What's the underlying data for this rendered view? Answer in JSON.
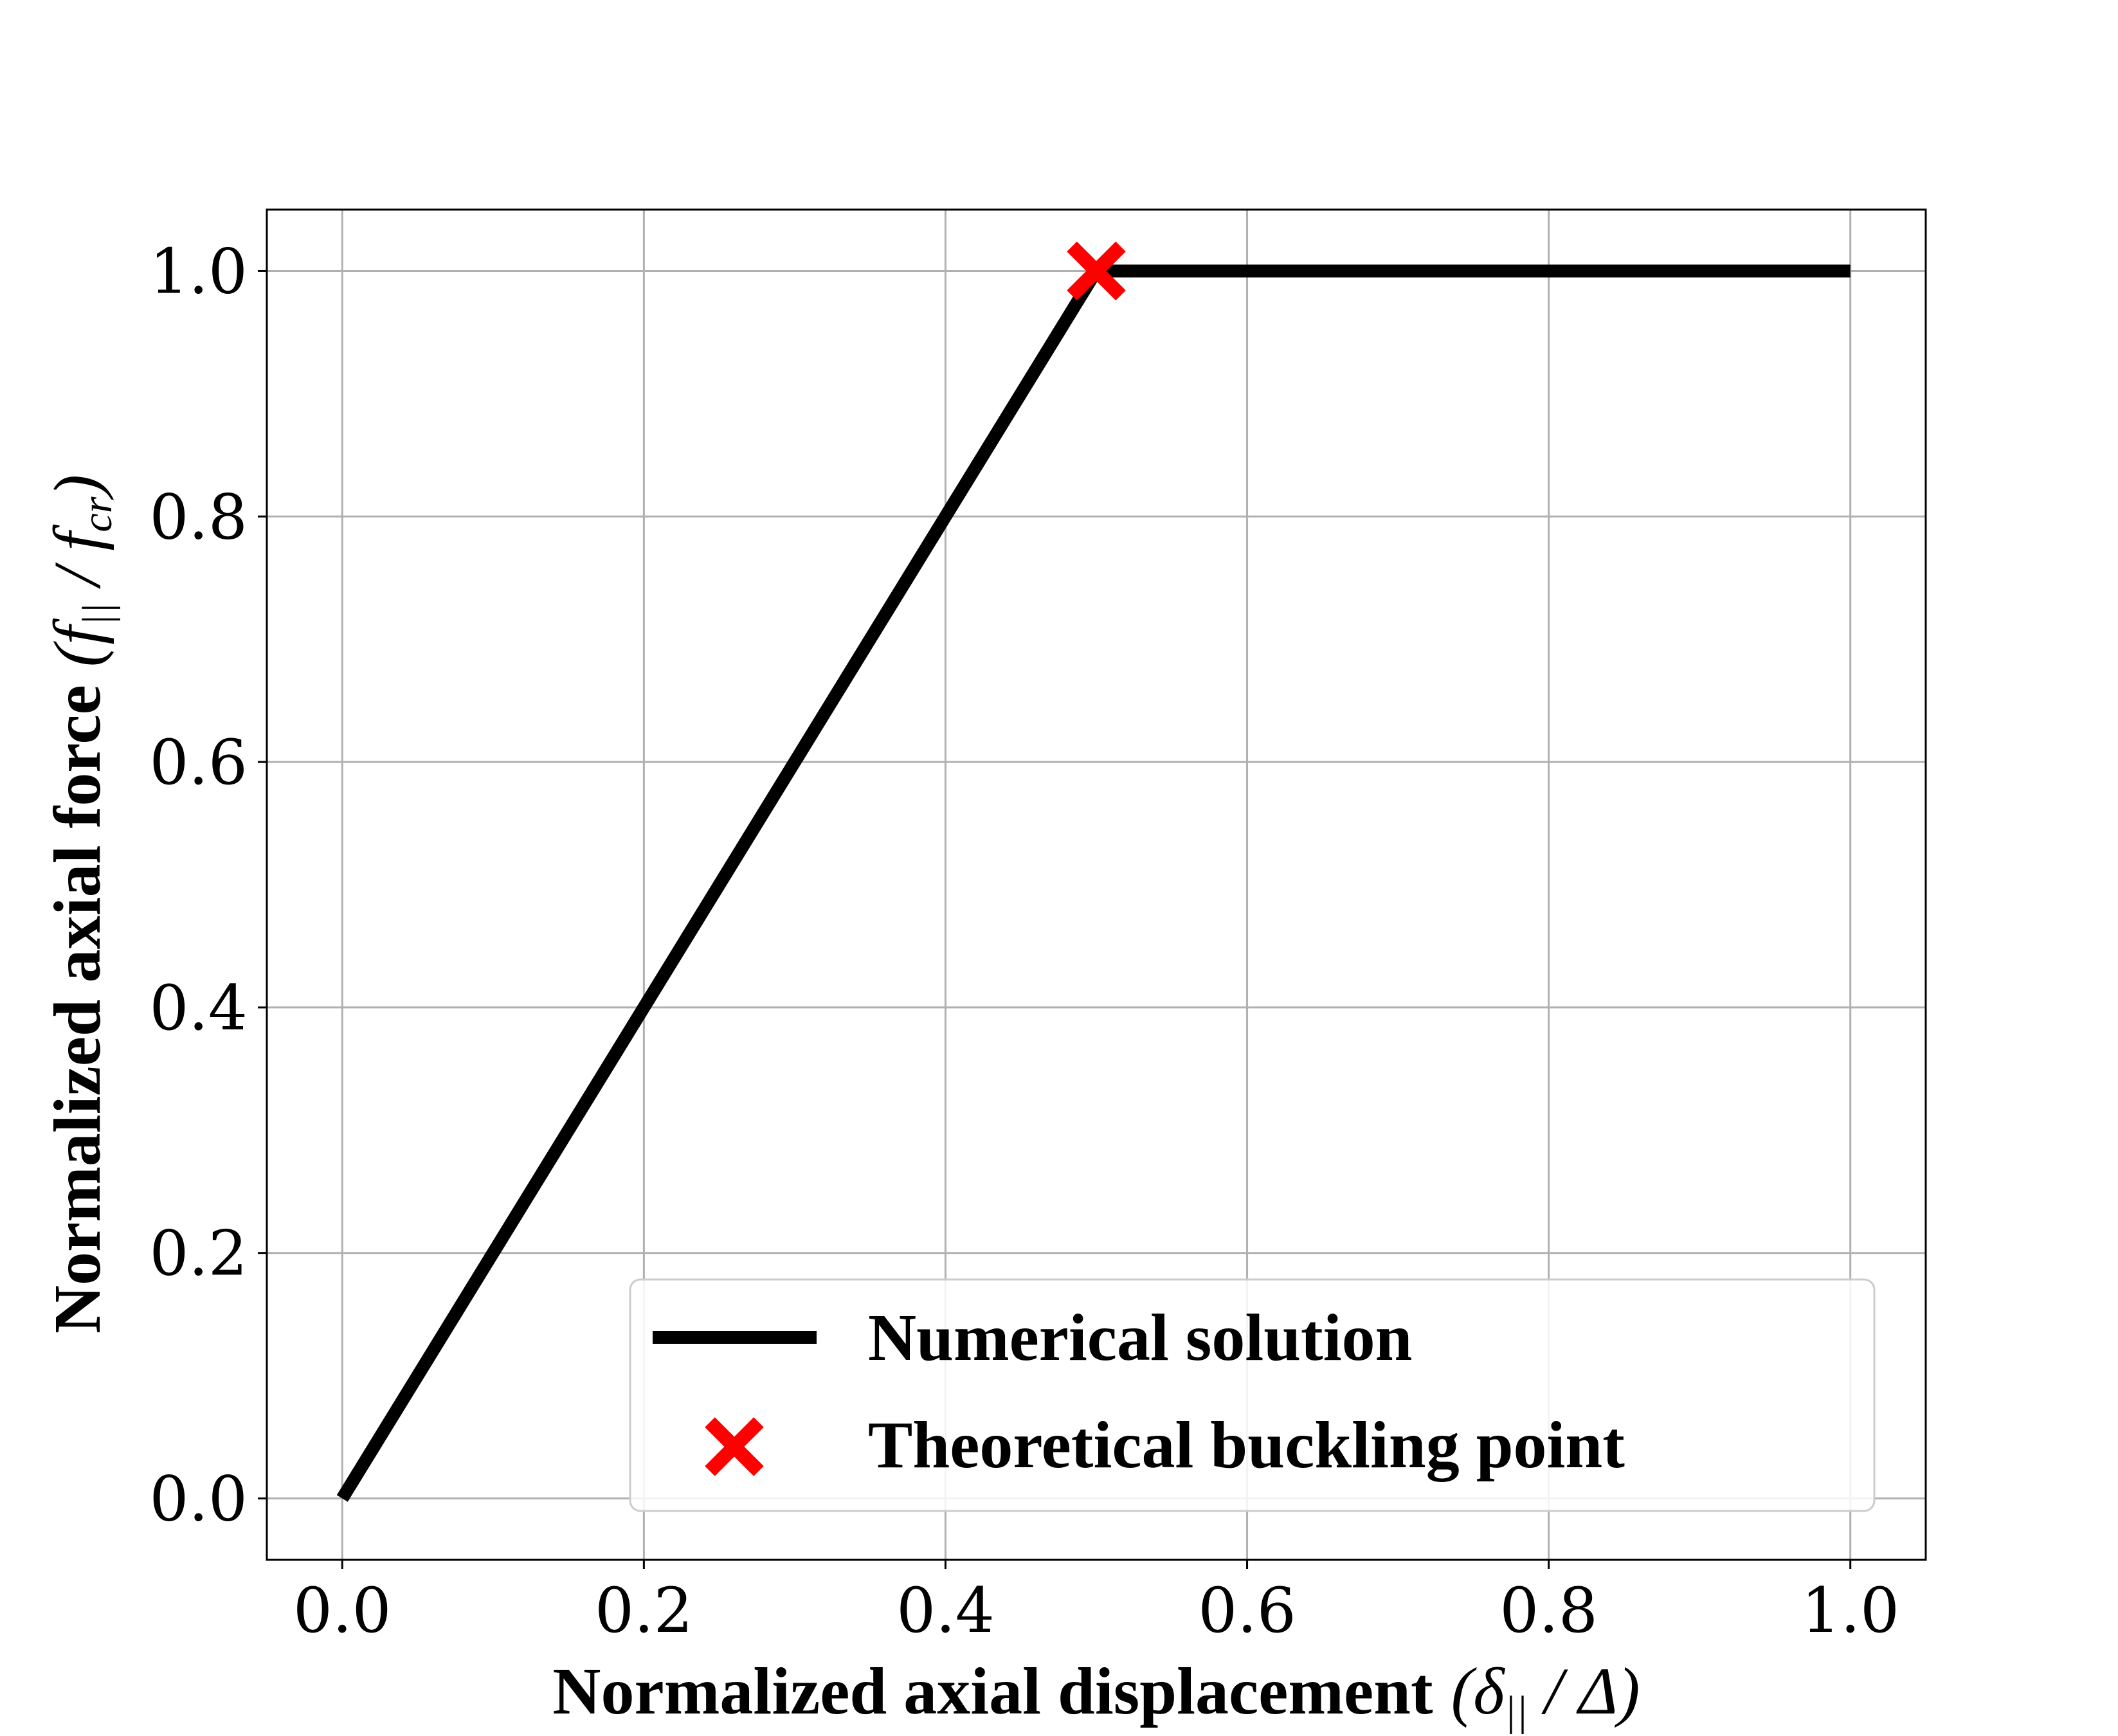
{
  "chart_data": {
    "type": "line",
    "title": "",
    "xlabel": {
      "text": "Normalized axial displacement",
      "math_open": "(δ",
      "math_sub": "||",
      "math_close": " / Δ)"
    },
    "ylabel": {
      "text": "Normalized axial force",
      "math_open": "(f",
      "math_sub": "||",
      "math_mid": " / f",
      "math_sub2": "cr",
      "math_close": ")"
    },
    "xlim": [
      -0.05,
      1.05
    ],
    "ylim": [
      -0.05,
      1.05
    ],
    "xticks": [
      0.0,
      0.2,
      0.4,
      0.6,
      0.8,
      1.0
    ],
    "yticks": [
      0.0,
      0.2,
      0.4,
      0.6,
      0.8,
      1.0
    ],
    "xtick_labels": [
      "0.0",
      "0.2",
      "0.4",
      "0.6",
      "0.8",
      "1.0"
    ],
    "ytick_labels": [
      "0.0",
      "0.2",
      "0.4",
      "0.6",
      "0.8",
      "1.0"
    ],
    "grid": true,
    "legend_position": "lower right",
    "series": [
      {
        "name": "Numerical solution",
        "kind": "line",
        "color": "#000000",
        "x": [
          0.0,
          0.1,
          0.2,
          0.3,
          0.4,
          0.48,
          0.5,
          0.6,
          0.7,
          0.8,
          0.9,
          1.0
        ],
        "y": [
          0.0,
          0.2,
          0.4,
          0.6,
          0.8,
          0.96,
          1.0,
          1.0,
          1.0,
          1.0,
          1.0,
          1.0
        ]
      },
      {
        "name": "Theoretical buckling point",
        "kind": "marker",
        "marker": "X",
        "color": "#ff0000",
        "x": [
          0.5
        ],
        "y": [
          1.0
        ]
      }
    ]
  }
}
